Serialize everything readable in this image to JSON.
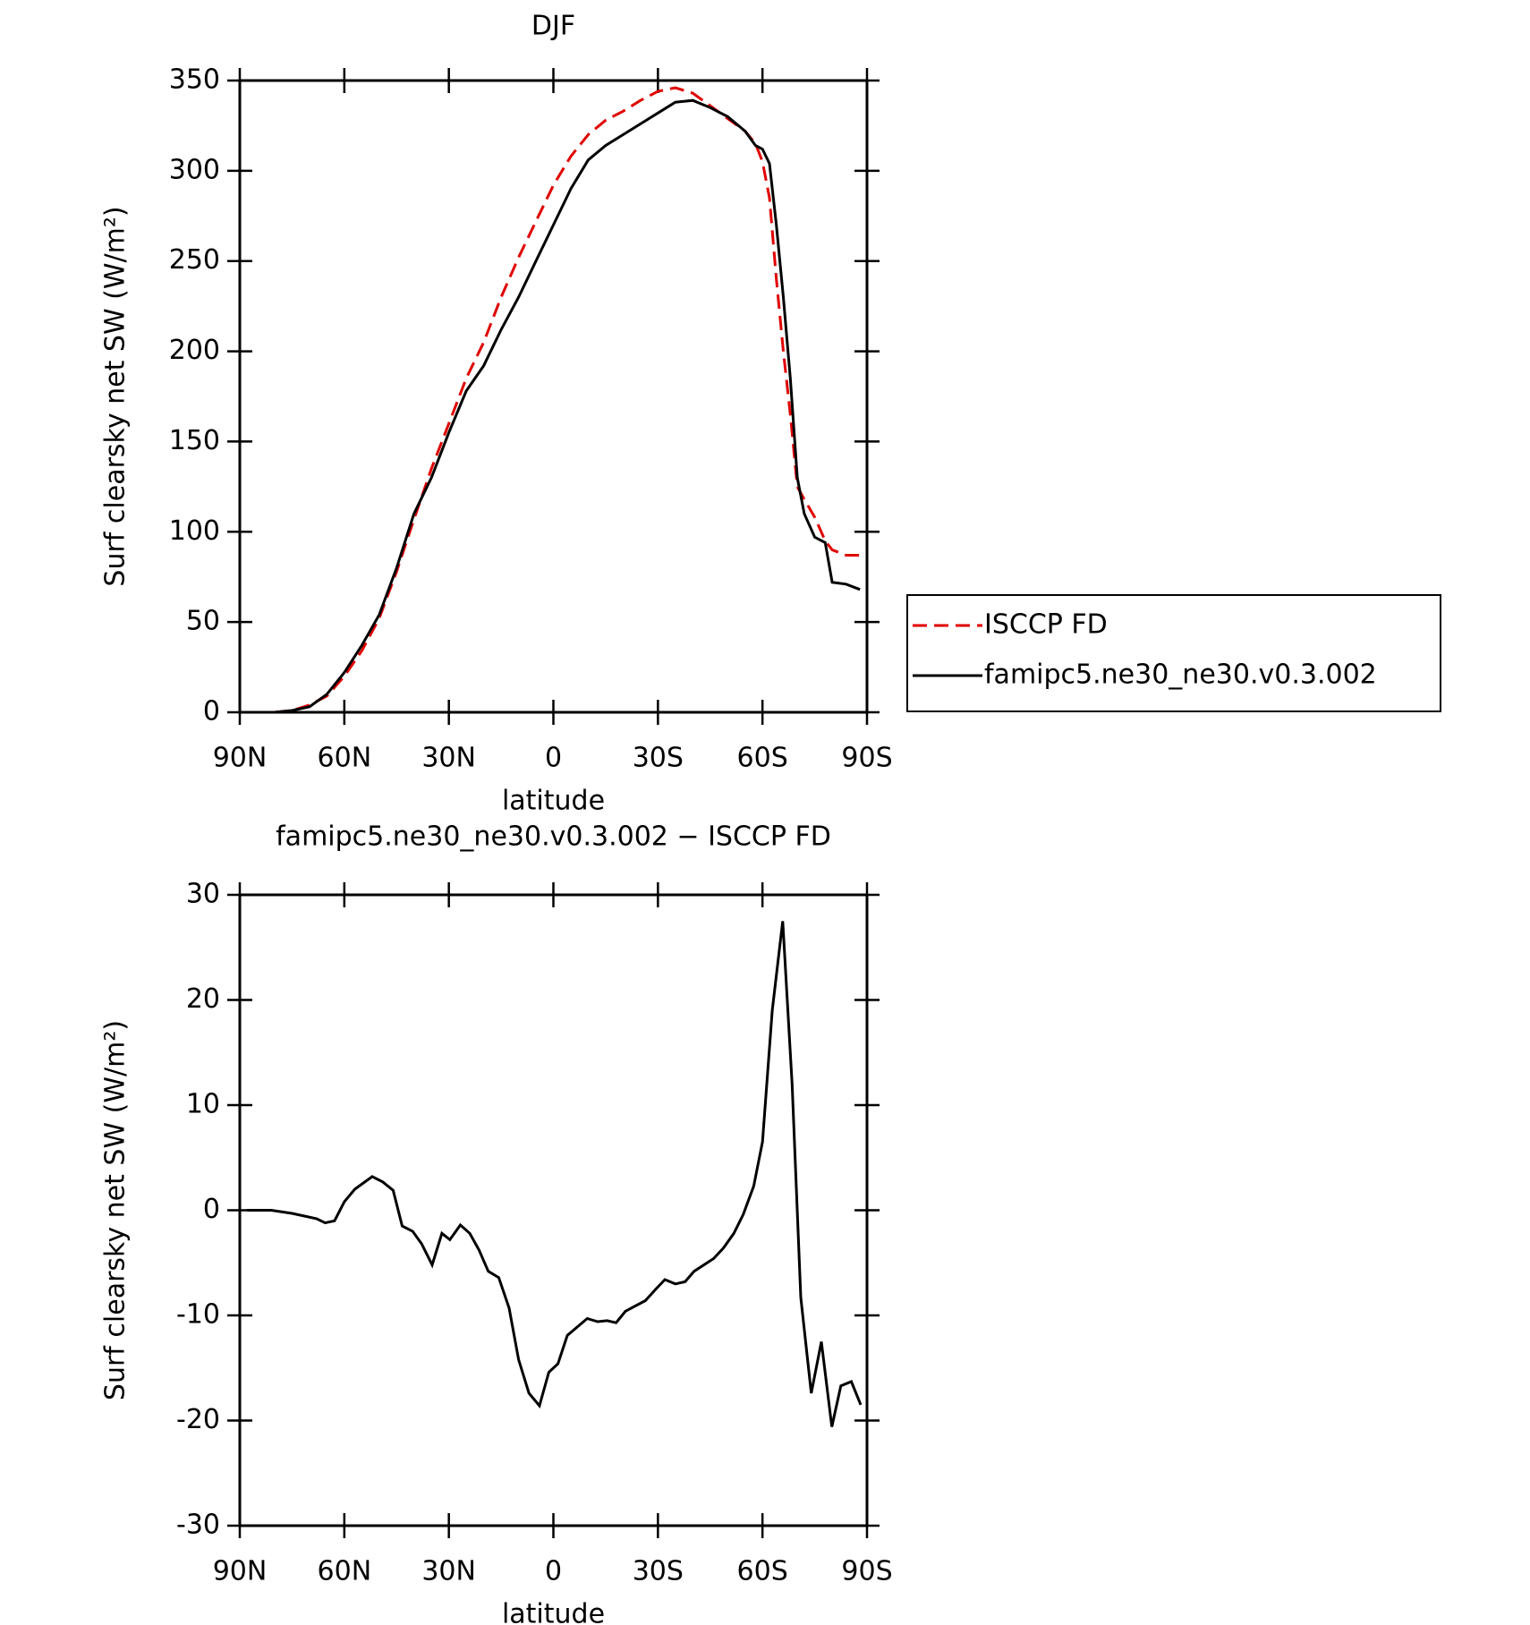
{
  "chart_data": [
    {
      "type": "line",
      "title": "DJF",
      "x_label": "latitude",
      "y_label": "Surf clearsky net SW (W/m²)",
      "legend": "right",
      "xlim": [
        90,
        -90
      ],
      "xticks": [
        {
          "value": 90,
          "label": "90N"
        },
        {
          "value": 60,
          "label": "60N"
        },
        {
          "value": 30,
          "label": "30N"
        },
        0,
        {
          "value": -30,
          "label": "30S"
        },
        {
          "value": -60,
          "label": "60S"
        },
        {
          "value": -90,
          "label": "90S"
        }
      ],
      "ylim": [
        0,
        350
      ],
      "yticks": [
        0,
        50,
        100,
        150,
        200,
        250,
        300,
        350
      ],
      "x": [
        88,
        85,
        80,
        75,
        70,
        65,
        60,
        55,
        50,
        45,
        40,
        35,
        30,
        25,
        20,
        15,
        10,
        5,
        0,
        -5,
        -10,
        -15,
        -20,
        -25,
        -30,
        -35,
        -40,
        -45,
        -50,
        -55,
        -58,
        -60,
        -62,
        -64,
        -66,
        -68,
        -70,
        -72,
        -75,
        -78,
        -80,
        -84,
        -88
      ],
      "series": [
        {
          "name": "ISCCP FD",
          "color": "#e00000",
          "line_style": "dashed",
          "values": [
            null,
            null,
            0,
            1,
            4,
            9,
            20,
            34,
            52,
            78,
            107,
            135,
            160,
            185,
            205,
            230,
            252,
            272,
            292,
            308,
            320,
            328,
            333,
            339,
            344,
            346,
            343,
            336,
            329,
            322,
            315,
            305,
            285,
            240,
            200,
            165,
            125,
            118,
            108,
            95,
            90,
            87,
            87
          ]
        },
        {
          "name": "famipc5.ne30_ne30.v0.3.002",
          "color": "#000000",
          "line_style": "solid",
          "values": [
            null,
            null,
            0,
            1,
            3,
            10,
            22,
            37,
            54,
            80,
            110,
            130,
            155,
            178,
            192,
            212,
            230,
            250,
            270,
            290,
            306,
            314,
            320,
            326,
            332,
            338,
            339,
            335,
            330,
            322,
            314,
            312,
            304,
            270,
            230,
            185,
            130,
            110,
            97,
            94,
            72,
            71,
            68
          ]
        }
      ]
    },
    {
      "type": "line",
      "title": "famipc5.ne30_ne30.v0.3.002 − ISCCP FD",
      "x_label": "latitude",
      "y_label": "Surf clearsky net SW (W/m²)",
      "xlim": [
        90,
        -90
      ],
      "xticks": [
        {
          "value": 90,
          "label": "90N"
        },
        {
          "value": 60,
          "label": "60N"
        },
        {
          "value": 30,
          "label": "30N"
        },
        0,
        {
          "value": -30,
          "label": "30S"
        },
        {
          "value": -60,
          "label": "60S"
        },
        {
          "value": -90,
          "label": "90S"
        }
      ],
      "ylim": [
        -30,
        30
      ],
      "yticks": [
        -30,
        -20,
        -10,
        0,
        10,
        20,
        30
      ],
      "x": [
        88,
        81,
        75,
        68,
        65.5,
        62.8,
        60,
        57,
        52,
        49,
        46,
        43.4,
        40.4,
        37.8,
        34.8,
        32,
        29.7,
        26.7,
        24,
        21.3,
        18.7,
        15.7,
        12.7,
        10,
        7,
        4,
        1.3,
        -1.3,
        -4,
        -9.7,
        -12.7,
        -15.4,
        -18,
        -20.7,
        -26.4,
        -29.4,
        -32,
        -35,
        -37.8,
        -40.4,
        -46,
        -48.8,
        -51.8,
        -54.5,
        -57.5,
        -60,
        -62.8,
        -65.8,
        -68.5,
        -71,
        -74,
        -76.9,
        -79.9,
        -82.5,
        -85.5,
        -88.2
      ],
      "series": [
        {
          "color": "#000000",
          "line_style": "solid",
          "values": [
            0,
            0,
            -0.3,
            -0.8,
            -1.2,
            -1.0,
            0.8,
            2,
            3.2,
            2.7,
            1.9,
            -1.5,
            -2,
            -3.2,
            -5.2,
            -2.2,
            -2.8,
            -1.4,
            -2.2,
            -3.8,
            -5.8,
            -6.4,
            -9.3,
            -14.2,
            -17.4,
            -18.6,
            -15.4,
            -14.6,
            -11.9,
            -10.3,
            -10.6,
            -10.5,
            -10.7,
            -9.6,
            -8.6,
            -7.5,
            -6.6,
            -7,
            -6.8,
            -5.8,
            -4.6,
            -3.6,
            -2.2,
            -0.4,
            2.3,
            6.5,
            19,
            27.5,
            12,
            -8.3,
            -17.4,
            -12.5,
            -20.6,
            -16.7,
            -16.3,
            -18.5
          ]
        }
      ]
    }
  ]
}
